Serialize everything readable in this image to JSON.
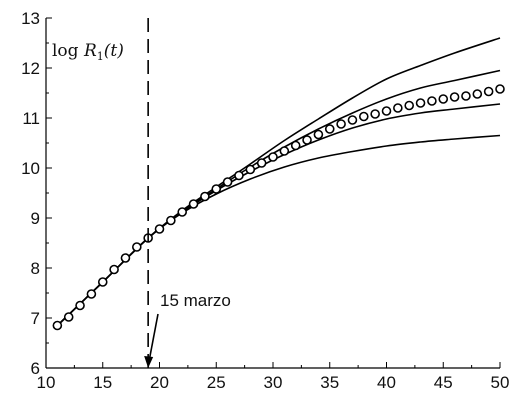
{
  "chart_data": {
    "type": "line",
    "title": "",
    "xlabel": "",
    "ylabel": {
      "prefix": "log ",
      "var": "R",
      "sub": "1",
      "suffix": "(t)"
    },
    "xlim": [
      10,
      50
    ],
    "ylim": [
      6,
      13
    ],
    "xticks": [
      10,
      15,
      20,
      25,
      30,
      35,
      40,
      45,
      50
    ],
    "yticks": [
      6,
      7,
      8,
      9,
      10,
      11,
      12,
      13
    ],
    "grid": false,
    "reference_line": {
      "x": 19,
      "style": "dashed"
    },
    "annotation": {
      "text": "15 marzo",
      "points_to_x": 19,
      "points_to_y": 6
    },
    "observed": {
      "marker": "circle",
      "x": [
        11,
        12,
        13,
        14,
        15,
        16,
        17,
        18,
        19,
        20,
        21,
        22,
        23,
        24,
        25,
        26,
        27,
        28,
        29,
        30,
        31,
        32,
        33,
        34,
        35,
        36,
        37,
        38,
        39,
        40,
        41,
        42,
        43,
        44,
        45,
        46,
        47,
        48,
        49,
        50
      ],
      "y": [
        6.85,
        7.02,
        7.25,
        7.48,
        7.72,
        7.97,
        8.2,
        8.42,
        8.6,
        8.78,
        8.95,
        9.12,
        9.28,
        9.43,
        9.58,
        9.72,
        9.85,
        9.97,
        10.1,
        10.22,
        10.34,
        10.45,
        10.56,
        10.67,
        10.78,
        10.88,
        10.96,
        11.03,
        11.08,
        11.14,
        11.2,
        11.25,
        11.3,
        11.34,
        11.38,
        11.42,
        11.44,
        11.48,
        11.53,
        11.58
      ]
    },
    "series": [
      {
        "x": [
          11,
          15,
          19,
          22,
          25,
          28,
          31,
          34,
          37,
          40,
          43,
          46,
          50
        ],
        "y": [
          6.85,
          7.72,
          8.6,
          9.15,
          9.62,
          10.08,
          10.55,
          10.98,
          11.4,
          11.78,
          12.05,
          12.3,
          12.6
        ]
      },
      {
        "x": [
          11,
          15,
          19,
          22,
          25,
          28,
          31,
          34,
          37,
          40,
          43,
          46,
          50
        ],
        "y": [
          6.85,
          7.72,
          8.6,
          9.13,
          9.58,
          10.02,
          10.42,
          10.78,
          11.1,
          11.38,
          11.6,
          11.75,
          11.95
        ]
      },
      {
        "x": [
          11,
          15,
          19,
          22,
          25,
          28,
          31,
          34,
          37,
          40,
          43,
          46,
          50
        ],
        "y": [
          6.85,
          7.72,
          8.6,
          9.12,
          9.55,
          9.93,
          10.27,
          10.56,
          10.8,
          10.98,
          11.1,
          11.18,
          11.28
        ]
      },
      {
        "x": [
          11,
          15,
          19,
          22,
          25,
          28,
          31,
          34,
          37,
          40,
          43,
          46,
          50
        ],
        "y": [
          6.85,
          7.72,
          8.6,
          9.1,
          9.48,
          9.78,
          10.02,
          10.2,
          10.33,
          10.44,
          10.52,
          10.58,
          10.65
        ]
      }
    ],
    "colors": {
      "line": "#000000",
      "marker_stroke": "#000000",
      "marker_fill": "#ffffff"
    }
  }
}
